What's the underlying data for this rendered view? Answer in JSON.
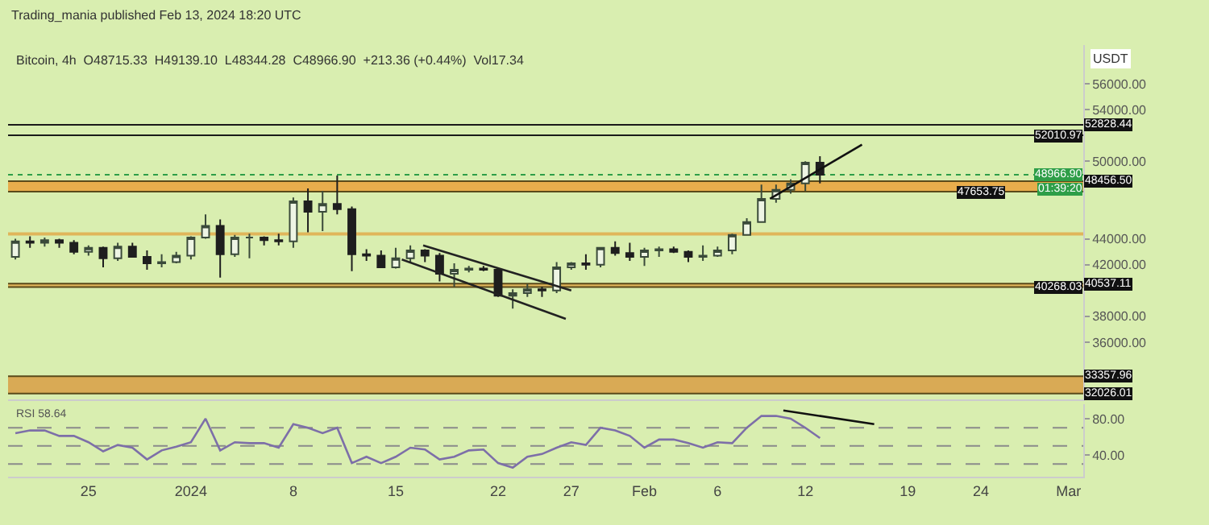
{
  "chart_data": [
    {
      "type": "candlestick",
      "title": "Trading_mania published Feb 13, 2024 18:20 UTC",
      "subtitle": "Bitcoin, 4h  O48715.33  H49139.10  L48344.28  C48966.90  +213.36 (+0.44%)  Vol17.34",
      "ylabel": "USDT",
      "x": [
        "2023-12-20",
        "2023-12-21",
        "2023-12-22",
        "2023-12-23",
        "2023-12-24",
        "2023-12-25",
        "2023-12-26",
        "2023-12-27",
        "2023-12-28",
        "2023-12-29",
        "2023-12-30",
        "2023-12-31",
        "2024-01-01",
        "2024-01-02",
        "2024-01-03",
        "2024-01-04",
        "2024-01-05",
        "2024-01-06",
        "2024-01-07",
        "2024-01-08",
        "2024-01-09",
        "2024-01-10",
        "2024-01-11",
        "2024-01-12",
        "2024-01-13",
        "2024-01-14",
        "2024-01-15",
        "2024-01-16",
        "2024-01-17",
        "2024-01-18",
        "2024-01-19",
        "2024-01-20",
        "2024-01-21",
        "2024-01-22",
        "2024-01-23",
        "2024-01-24",
        "2024-01-25",
        "2024-01-26",
        "2024-01-27",
        "2024-01-28",
        "2024-01-29",
        "2024-01-30",
        "2024-01-31",
        "2024-02-01",
        "2024-02-02",
        "2024-02-03",
        "2024-02-04",
        "2024-02-05",
        "2024-02-06",
        "2024-02-07",
        "2024-02-08",
        "2024-02-09",
        "2024-02-10",
        "2024-02-11",
        "2024-02-12",
        "2024-02-13"
      ],
      "ohlc": [
        [
          42600,
          44000,
          42400,
          43800
        ],
        [
          43800,
          44200,
          43300,
          43700
        ],
        [
          43700,
          44100,
          43400,
          43900
        ],
        [
          43900,
          44000,
          43300,
          43700
        ],
        [
          43700,
          43900,
          42800,
          43000
        ],
        [
          43000,
          43500,
          42700,
          43300
        ],
        [
          43300,
          43400,
          41800,
          42500
        ],
        [
          42500,
          43700,
          42300,
          43400
        ],
        [
          43400,
          43700,
          42600,
          42600
        ],
        [
          42600,
          43100,
          41600,
          42100
        ],
        [
          42100,
          42800,
          41800,
          42200
        ],
        [
          42200,
          43000,
          42100,
          42700
        ],
        [
          42700,
          44200,
          42400,
          44100
        ],
        [
          44100,
          45900,
          44000,
          45000
        ],
        [
          45000,
          45500,
          41000,
          42800
        ],
        [
          42800,
          44300,
          42600,
          44100
        ],
        [
          44100,
          44400,
          42500,
          44100
        ],
        [
          44100,
          44200,
          43500,
          43900
        ],
        [
          43900,
          44400,
          43500,
          43800
        ],
        [
          43800,
          47200,
          43300,
          46900
        ],
        [
          46900,
          47900,
          44500,
          46100
        ],
        [
          46100,
          47700,
          44600,
          46700
        ],
        [
          46700,
          48900,
          45900,
          46300
        ],
        [
          46300,
          46500,
          41500,
          42800
        ],
        [
          42800,
          43200,
          42300,
          42700
        ],
        [
          42700,
          43100,
          41800,
          41800
        ],
        [
          41800,
          43300,
          41700,
          42500
        ],
        [
          42500,
          43500,
          42100,
          43100
        ],
        [
          43100,
          43200,
          42200,
          42700
        ],
        [
          42700,
          42900,
          40700,
          41300
        ],
        [
          41300,
          42100,
          40300,
          41600
        ],
        [
          41600,
          41900,
          41400,
          41700
        ],
        [
          41700,
          41900,
          41500,
          41600
        ],
        [
          41600,
          41700,
          39500,
          39600
        ],
        [
          39600,
          40100,
          38600,
          39800
        ],
        [
          39800,
          40500,
          39500,
          40100
        ],
        [
          40100,
          40300,
          39500,
          40000
        ],
        [
          40000,
          42200,
          39800,
          41800
        ],
        [
          41800,
          42200,
          41600,
          42100
        ],
        [
          42100,
          42800,
          41600,
          42000
        ],
        [
          42000,
          43300,
          41800,
          43300
        ],
        [
          43300,
          43800,
          42700,
          42900
        ],
        [
          42900,
          43700,
          42300,
          42600
        ],
        [
          42600,
          43300,
          41900,
          43100
        ],
        [
          43100,
          43400,
          42600,
          43200
        ],
        [
          43200,
          43400,
          42900,
          43000
        ],
        [
          43000,
          43100,
          42200,
          42600
        ],
        [
          42600,
          43500,
          42300,
          42700
        ],
        [
          42700,
          43400,
          42600,
          43100
        ],
        [
          43100,
          44400,
          42800,
          44300
        ],
        [
          44300,
          45600,
          44300,
          45300
        ],
        [
          45300,
          48200,
          45300,
          47100
        ],
        [
          47100,
          48200,
          46800,
          47800
        ],
        [
          47800,
          48600,
          47500,
          48300
        ],
        [
          48300,
          50000,
          47700,
          49900
        ],
        [
          49900,
          50400,
          48300,
          48966.9
        ]
      ],
      "series": [
        {
          "type": "line",
          "color": "#222222",
          "x": [
            "2024-01-16T21:00",
            "2024-01-27T00:00"
          ],
          "values": [
            43500,
            40000
          ]
        },
        {
          "type": "line",
          "color": "#222222",
          "x": [
            "2024-01-15T10:00",
            "2024-01-26T15:00"
          ],
          "values": [
            42400,
            37800
          ]
        },
        {
          "type": "line",
          "color": "#111111",
          "x": [
            "2024-02-09T14:00",
            "2024-02-15T21:00"
          ],
          "values": [
            47100,
            51300
          ]
        }
      ],
      "xlim": [
        "2023-12-19T12:00",
        "2024-03-02T00:00"
      ],
      "ylim": [
        31600,
        59000
      ],
      "yticks": [
        {
          "value": 36000,
          "label": "36000.00"
        },
        {
          "value": 38000,
          "label": "38000.00"
        },
        {
          "value": 42000,
          "label": "42000.00"
        },
        {
          "value": 44000,
          "label": "44000.00"
        },
        {
          "value": 50000,
          "label": "50000.00"
        },
        {
          "value": 54000,
          "label": "54000.00"
        },
        {
          "value": 56000,
          "label": "56000.00"
        }
      ],
      "tick_labels": "y",
      "grid": false,
      "ref_lines": [
        {
          "axis": "y",
          "value": 52828.44,
          "label": "52828.44",
          "color": "#1a1a1a"
        },
        {
          "axis": "y",
          "value": 52010.97,
          "label": "52010.97",
          "color": "#1a1a1a"
        },
        {
          "axis": "y",
          "value": 48966.9,
          "label": "48966.90",
          "color": "#2e9e48",
          "line_style": "dotted"
        },
        {
          "axis": "y",
          "value": 48456.5,
          "label": "48456.50",
          "color": "#5a4a1a"
        },
        {
          "axis": "y",
          "value": 47653.75,
          "label": "47653.75",
          "color": "#5a4a1a"
        },
        {
          "axis": "y",
          "value": 40537.11,
          "label": "40537.11",
          "color": "#5a4a1a"
        },
        {
          "axis": "y",
          "value": 40268.03,
          "label": "40268.03",
          "color": "#5a4a1a"
        },
        {
          "axis": "y",
          "value": 33357.96,
          "label": "33357.96",
          "color": "#5a4a1a"
        },
        {
          "axis": "y",
          "value": 32026.01,
          "label": "32026.01",
          "color": "#5a4a1a"
        }
      ],
      "bands": [
        {
          "axis": "y",
          "from": 47653.75,
          "to": 48456.5,
          "color": "#e8ad4c"
        },
        {
          "axis": "y",
          "from": 44250,
          "to": 44500,
          "color": "#e0b55a"
        },
        {
          "axis": "y",
          "from": 40268.03,
          "to": 40537.11,
          "color": "#e0b55a"
        },
        {
          "axis": "y",
          "from": 32026.01,
          "to": 33357.96,
          "color": "#d9aa55"
        }
      ],
      "annotations": [
        "01:39:20"
      ]
    },
    {
      "type": "line",
      "title": "RSI 58.64",
      "x": [
        "2023-12-20",
        "2023-12-21",
        "2023-12-22",
        "2023-12-23",
        "2023-12-24",
        "2023-12-25",
        "2023-12-26",
        "2023-12-27",
        "2023-12-28",
        "2023-12-29",
        "2023-12-30",
        "2023-12-31",
        "2024-01-01",
        "2024-01-02",
        "2024-01-03",
        "2024-01-04",
        "2024-01-05",
        "2024-01-06",
        "2024-01-07",
        "2024-01-08",
        "2024-01-09",
        "2024-01-10",
        "2024-01-11",
        "2024-01-12",
        "2024-01-13",
        "2024-01-14",
        "2024-01-15",
        "2024-01-16",
        "2024-01-17",
        "2024-01-18",
        "2024-01-19",
        "2024-01-20",
        "2024-01-21",
        "2024-01-22",
        "2024-01-23",
        "2024-01-24",
        "2024-01-25",
        "2024-01-26",
        "2024-01-27",
        "2024-01-28",
        "2024-01-29",
        "2024-01-30",
        "2024-01-31",
        "2024-02-01",
        "2024-02-02",
        "2024-02-03",
        "2024-02-04",
        "2024-02-05",
        "2024-02-06",
        "2024-02-07",
        "2024-02-08",
        "2024-02-09",
        "2024-02-10",
        "2024-02-11",
        "2024-02-12",
        "2024-02-13"
      ],
      "series": [
        {
          "color": "#7d6fa8",
          "values": [
            64,
            67,
            67,
            61,
            61,
            54,
            44,
            51,
            48,
            35,
            45,
            49,
            54,
            80,
            45,
            54,
            53,
            53,
            48,
            74,
            70,
            64,
            70,
            31,
            38,
            31,
            38,
            48,
            46,
            35,
            38,
            45,
            46,
            31,
            26,
            38,
            41,
            48,
            54,
            51,
            70,
            67,
            61,
            48,
            57,
            57,
            53,
            48,
            54,
            53,
            70,
            83,
            83,
            80,
            70,
            58.64
          ]
        },
        {
          "type": "line",
          "color": "#111111",
          "x": [
            "2024-02-10T12:00",
            "2024-02-16T17:00"
          ],
          "values": [
            89,
            74
          ]
        }
      ],
      "xlim": [
        "2023-12-19T12:00",
        "2024-03-02T00:00"
      ],
      "ylim": [
        16,
        96
      ],
      "yticks": [
        {
          "value": 40,
          "label": "40.00"
        },
        {
          "value": 80,
          "label": "80.00"
        }
      ],
      "xticks": [
        {
          "value": "2023-12-25",
          "label": "25"
        },
        {
          "value": "2024-01-01",
          "label": "2024"
        },
        {
          "value": "2024-01-08",
          "label": "8"
        },
        {
          "value": "2024-01-15",
          "label": "15"
        },
        {
          "value": "2024-01-22",
          "label": "22"
        },
        {
          "value": "2024-01-27",
          "label": "27"
        },
        {
          "value": "2024-02-01",
          "label": "Feb"
        },
        {
          "value": "2024-02-06",
          "label": "6"
        },
        {
          "value": "2024-02-12",
          "label": "12"
        },
        {
          "value": "2024-02-19",
          "label": "19"
        },
        {
          "value": "2024-02-24",
          "label": "24"
        },
        {
          "value": "2024-03-01",
          "label": "Mar"
        }
      ],
      "grid": false,
      "ref_lines": [
        {
          "axis": "y",
          "value": 70,
          "color": "#8a8a8a",
          "line_style": "dashed"
        },
        {
          "axis": "y",
          "value": 50,
          "color": "#8a8a8a",
          "line_style": "dashed"
        },
        {
          "axis": "y",
          "value": 30,
          "color": "#8a8a8a",
          "line_style": "dashed"
        }
      ]
    }
  ]
}
